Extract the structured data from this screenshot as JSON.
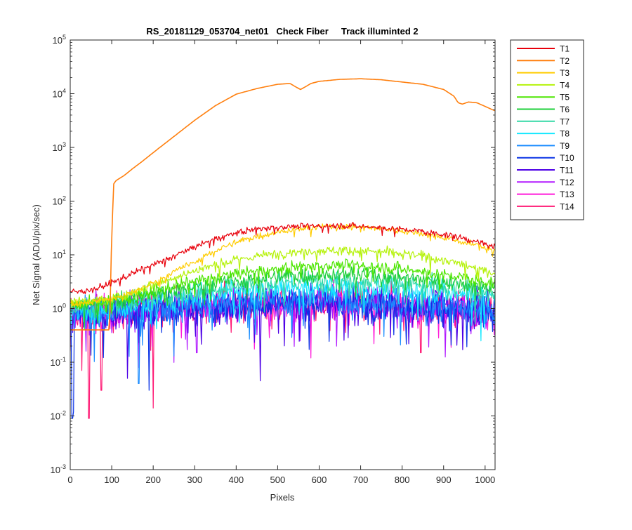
{
  "chart_data": {
    "type": "line",
    "title": "RS_20181129_053704_net01   Check Fiber     Track illuminted 2",
    "xlabel": "Pixels",
    "ylabel": "Net Signal (ADU/pix/sec)",
    "xlim": [
      0,
      1024
    ],
    "ylim": [
      0.001,
      100000
    ],
    "yscale": "log",
    "x_ticks": [
      0,
      100,
      200,
      300,
      400,
      500,
      600,
      700,
      800,
      900,
      1000
    ],
    "x_tick_labels": [
      "0",
      "100",
      "200",
      "300",
      "400",
      "500",
      "600",
      "700",
      "800",
      "900",
      "1000"
    ],
    "y_ticks": [
      0.001,
      0.01,
      0.1,
      1,
      10,
      100,
      1000,
      10000,
      100000
    ],
    "y_tick_labels": [
      {
        "base": "10",
        "exp": "-3"
      },
      {
        "base": "10",
        "exp": "-2"
      },
      {
        "base": "10",
        "exp": "-1"
      },
      {
        "base": "10",
        "exp": "0"
      },
      {
        "base": "10",
        "exp": "1"
      },
      {
        "base": "10",
        "exp": "2"
      },
      {
        "base": "10",
        "exp": "3"
      },
      {
        "base": "10",
        "exp": "4"
      },
      {
        "base": "10",
        "exp": "5"
      }
    ],
    "grid": false,
    "legend_position": "outside-top-right",
    "series": [
      {
        "name": "T1",
        "color": "#e8000b",
        "x": [
          0,
          60,
          100,
          150,
          200,
          250,
          300,
          350,
          400,
          450,
          500,
          550,
          600,
          650,
          700,
          750,
          800,
          850,
          900,
          950,
          1000,
          1024
        ],
        "y": [
          2.0,
          2.3,
          3.0,
          4.5,
          6.5,
          9.5,
          14,
          20,
          26,
          30,
          33,
          34,
          34.5,
          35,
          34,
          32,
          30,
          27,
          24,
          20,
          16,
          14
        ],
        "noise": 0.04
      },
      {
        "name": "T2",
        "color": "#ff7f0e",
        "x": [
          0,
          80,
          95,
          100,
          105,
          110,
          130,
          150,
          175,
          200,
          250,
          300,
          350,
          400,
          450,
          500,
          530,
          545,
          555,
          565,
          580,
          600,
          650,
          700,
          750,
          800,
          850,
          900,
          925,
          935,
          945,
          960,
          980,
          1000,
          1024
        ],
        "y": [
          0.4,
          0.4,
          0.4,
          25,
          210,
          240,
          300,
          400,
          560,
          800,
          1600,
          3200,
          6000,
          9800,
          12500,
          15000,
          15500,
          13200,
          12000,
          13200,
          15500,
          17000,
          18500,
          19000,
          18200,
          16500,
          15000,
          12000,
          9000,
          6800,
          6400,
          7000,
          6800,
          5800,
          4800
        ],
        "noise": 0
      },
      {
        "name": "T3",
        "color": "#ffcc00",
        "x": [
          0,
          100,
          150,
          200,
          250,
          300,
          350,
          400,
          450,
          500,
          550,
          600,
          650,
          700,
          750,
          800,
          850,
          900,
          950,
          1000,
          1024
        ],
        "y": [
          1.2,
          1.5,
          2.0,
          3.0,
          4.8,
          7.5,
          12,
          17,
          22,
          27,
          30,
          33,
          34,
          33,
          31,
          28,
          25,
          21,
          17,
          14,
          12
        ],
        "noise": 0.04
      },
      {
        "name": "T4",
        "color": "#b5f20a",
        "x": [
          0,
          100,
          150,
          200,
          250,
          300,
          350,
          400,
          450,
          500,
          550,
          600,
          650,
          700,
          750,
          800,
          850,
          900,
          950,
          1000,
          1024
        ],
        "y": [
          1.3,
          1.5,
          2.0,
          2.8,
          3.8,
          5.0,
          6.5,
          8.0,
          9.5,
          10.5,
          11.5,
          12,
          12.2,
          12,
          11.5,
          10.5,
          9.5,
          8.0,
          6.5,
          5.0,
          4.5
        ],
        "noise": 0.06
      },
      {
        "name": "T5",
        "color": "#4de600",
        "x": [
          0,
          100,
          200,
          300,
          400,
          500,
          600,
          650,
          700,
          800,
          900,
          1000,
          1024
        ],
        "y": [
          1.2,
          1.4,
          2.1,
          3.2,
          4.5,
          5.5,
          6.3,
          6.5,
          6.3,
          5.5,
          4.3,
          3.2,
          3.0
        ],
        "noise": 0.08
      },
      {
        "name": "T6",
        "color": "#1ecf3a",
        "x": [
          0,
          100,
          200,
          300,
          400,
          500,
          600,
          650,
          700,
          800,
          900,
          1000,
          1024
        ],
        "y": [
          1.1,
          1.3,
          1.8,
          2.6,
          3.3,
          3.9,
          4.3,
          4.4,
          4.3,
          3.9,
          3.2,
          2.6,
          2.5
        ],
        "noise": 0.1
      },
      {
        "name": "T7",
        "color": "#33d9a6",
        "x": [
          0,
          100,
          200,
          300,
          400,
          500,
          600,
          650,
          700,
          800,
          900,
          1000,
          1024
        ],
        "y": [
          1.0,
          1.2,
          1.6,
          2.1,
          2.6,
          3.0,
          3.3,
          3.4,
          3.3,
          3.0,
          2.5,
          2.1,
          2.0
        ],
        "noise": 0.13
      },
      {
        "name": "T8",
        "color": "#14e8ff",
        "x": [
          0,
          100,
          200,
          300,
          400,
          500,
          600,
          650,
          700,
          800,
          900,
          1000,
          1024
        ],
        "y": [
          0.9,
          1.0,
          1.3,
          1.7,
          2.0,
          2.3,
          2.5,
          2.6,
          2.5,
          2.3,
          2.0,
          1.7,
          1.6
        ],
        "noise": 0.16
      },
      {
        "name": "T9",
        "color": "#1a8cff",
        "x": [
          0,
          200,
          400,
          600,
          800,
          1000,
          1024
        ],
        "y": [
          0.8,
          1.0,
          1.3,
          1.5,
          1.3,
          1.0,
          0.9
        ],
        "noise": 0.19
      },
      {
        "name": "T10",
        "color": "#0a33e6",
        "x": [
          0,
          200,
          400,
          600,
          800,
          1000,
          1024
        ],
        "y": [
          0.8,
          0.95,
          1.2,
          1.35,
          1.2,
          0.95,
          0.9
        ],
        "noise": 0.22
      },
      {
        "name": "T11",
        "color": "#4d00e6",
        "x": [
          0,
          200,
          400,
          600,
          800,
          1000,
          1024
        ],
        "y": [
          0.8,
          0.95,
          1.15,
          1.3,
          1.15,
          0.95,
          0.9
        ],
        "noise": 0.22
      },
      {
        "name": "T12",
        "color": "#b21aff",
        "x": [
          0,
          200,
          400,
          600,
          800,
          1000,
          1024
        ],
        "y": [
          0.8,
          0.95,
          1.15,
          1.3,
          1.15,
          0.95,
          0.9
        ],
        "noise": 0.22
      },
      {
        "name": "T13",
        "color": "#ff1ad9",
        "x": [
          0,
          200,
          400,
          600,
          800,
          1000,
          1024
        ],
        "y": [
          0.8,
          0.95,
          1.15,
          1.3,
          1.15,
          0.95,
          0.9
        ],
        "noise": 0.22
      },
      {
        "name": "T14",
        "color": "#ff1a75",
        "x": [
          0,
          200,
          400,
          600,
          800,
          1000,
          1024
        ],
        "y": [
          0.8,
          0.95,
          1.15,
          1.3,
          1.15,
          0.95,
          0.9
        ],
        "noise": 0.22
      }
    ],
    "spikes": [
      {
        "series": "T10",
        "x": 5,
        "y": 0.009
      },
      {
        "series": "T10",
        "x": 8,
        "y": 0.012
      },
      {
        "series": "T14",
        "x": 45,
        "y": 0.009
      },
      {
        "series": "T11",
        "x": 138,
        "y": 0.05
      },
      {
        "series": "T9",
        "x": 165,
        "y": 0.04
      },
      {
        "series": "T10",
        "x": 190,
        "y": 0.03
      },
      {
        "series": "T14",
        "x": 200,
        "y": 0.014
      },
      {
        "series": "T12",
        "x": 305,
        "y": 0.15
      },
      {
        "series": "T11",
        "x": 458,
        "y": 0.045
      },
      {
        "series": "T14",
        "x": 28,
        "y": 0.07
      },
      {
        "series": "T14",
        "x": 75,
        "y": 0.03
      },
      {
        "series": "T9",
        "x": 250,
        "y": 0.13
      },
      {
        "series": "T13",
        "x": 580,
        "y": 0.12
      },
      {
        "series": "T14",
        "x": 845,
        "y": 0.15
      },
      {
        "series": "T8",
        "x": 990,
        "y": 0.25
      }
    ]
  }
}
